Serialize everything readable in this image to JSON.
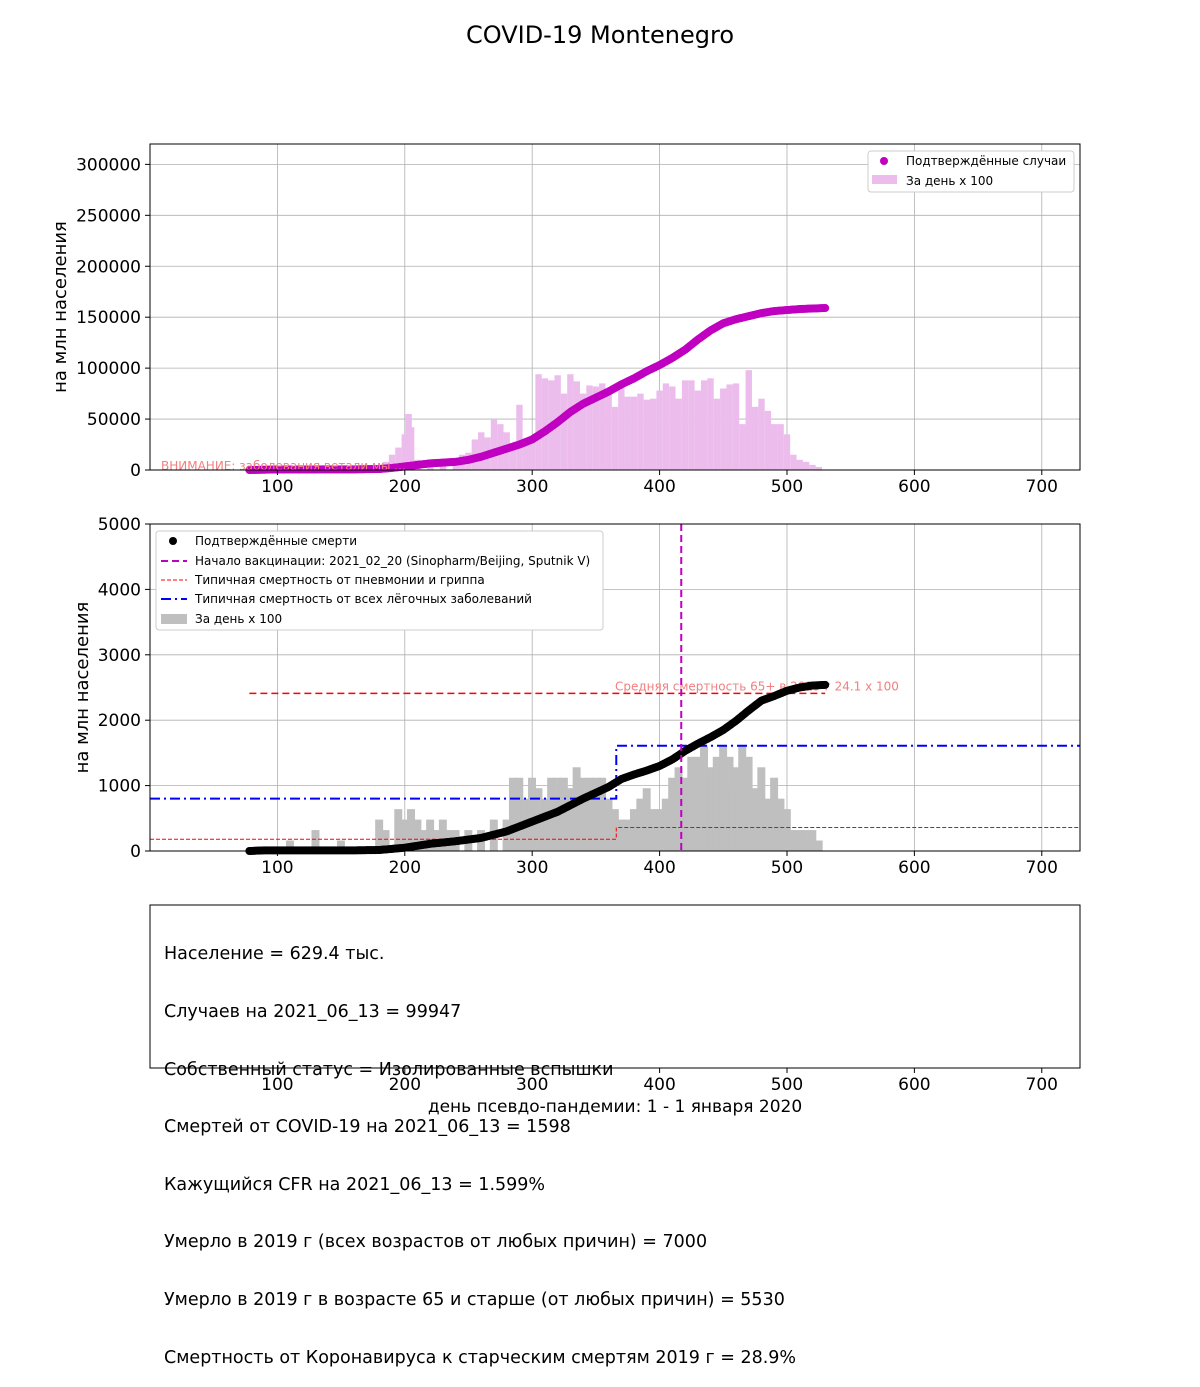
{
  "figure": {
    "title": "COVID-19 Montenegro"
  },
  "colors": {
    "cases": "#c000c0",
    "cases_bars": "#ebbcec",
    "deaths": "#000000",
    "death_bars": "#bfbfbf",
    "vaccination": "#c000c0",
    "flu": "#ff0000",
    "lung": "#0000ff",
    "note": "#f08080",
    "grid": "#b0b0b0"
  },
  "chart_data": [
    {
      "type": "scatter",
      "ylabel": "на млн населения",
      "xlim": [
        0,
        730
      ],
      "ylim": [
        0,
        320000
      ],
      "xticks": [
        100,
        200,
        300,
        400,
        500,
        600,
        700
      ],
      "yticks": [
        0,
        50000,
        100000,
        150000,
        200000,
        250000,
        300000
      ],
      "grid": true,
      "legend_position": "top-right",
      "legend": [
        "Подтверждённые случаи",
        "За день х 100"
      ],
      "annotation": "ВНИМАНИЕ: заболевания ветали мы ...",
      "series": [
        {
          "name": "Подтверждённые случаи",
          "kind": "points",
          "x": [
            78,
            100,
            130,
            160,
            180,
            190,
            200,
            210,
            220,
            240,
            250,
            260,
            270,
            280,
            290,
            300,
            310,
            320,
            330,
            340,
            350,
            360,
            370,
            380,
            390,
            400,
            410,
            420,
            430,
            440,
            450,
            460,
            470,
            480,
            490,
            500,
            510,
            520,
            530
          ],
          "y": [
            0,
            500,
            550,
            600,
            1000,
            2000,
            3500,
            5000,
            6500,
            8000,
            10000,
            13000,
            17000,
            21000,
            25000,
            30000,
            38000,
            47000,
            57000,
            65000,
            71000,
            77000,
            84000,
            90000,
            97000,
            103000,
            110000,
            118000,
            128000,
            137000,
            144000,
            148000,
            151000,
            154000,
            156000,
            157000,
            158000,
            158500,
            159000
          ]
        },
        {
          "name": "За день х 100",
          "kind": "bars",
          "x": [
            185,
            190,
            195,
            200,
            203,
            205,
            210,
            220,
            230,
            240,
            245,
            250,
            255,
            260,
            265,
            270,
            275,
            280,
            285,
            290,
            295,
            300,
            305,
            310,
            315,
            320,
            325,
            330,
            335,
            340,
            345,
            350,
            355,
            360,
            365,
            370,
            375,
            380,
            385,
            390,
            395,
            400,
            405,
            410,
            415,
            420,
            425,
            430,
            435,
            440,
            445,
            450,
            455,
            460,
            465,
            470,
            475,
            480,
            485,
            490,
            495,
            500,
            505,
            510,
            515,
            520,
            525
          ],
          "y": [
            8000,
            15000,
            22000,
            35000,
            55000,
            42000,
            10000,
            8000,
            10000,
            10000,
            15000,
            17000,
            30000,
            37000,
            32000,
            50000,
            45000,
            37000,
            25000,
            64000,
            27000,
            30000,
            94000,
            90000,
            88000,
            93000,
            75000,
            94000,
            87000,
            75000,
            83000,
            82000,
            85000,
            75000,
            62000,
            82000,
            72000,
            72000,
            75000,
            69000,
            70000,
            78000,
            85000,
            82000,
            70000,
            88000,
            88000,
            78000,
            88000,
            90000,
            70000,
            80000,
            84000,
            85000,
            45000,
            98000,
            62000,
            70000,
            58000,
            45000,
            45000,
            35000,
            15000,
            10000,
            8000,
            5000,
            3000
          ]
        }
      ]
    },
    {
      "type": "scatter",
      "ylabel": "на млн населения",
      "xlim": [
        0,
        730
      ],
      "ylim": [
        0,
        5000
      ],
      "xticks": [
        100,
        200,
        300,
        400,
        500,
        600,
        700
      ],
      "yticks": [
        0,
        1000,
        2000,
        3000,
        4000,
        5000
      ],
      "grid": true,
      "legend_position": "top-left",
      "legend": [
        "Подтверждённые смерти",
        "Начало вакцинации: 2021_02_20 (Sinopharm/Beijing, Sputnik V)",
        "Типичная смертность от пневмонии и гриппа",
        "Типичная смертность от всех лёгочных заболеваний",
        "За день х 100"
      ],
      "annotation": "Средняя смертность 65+ в 2019 г 24.1 х 100",
      "series": [
        {
          "name": "Подтверждённые смерти",
          "kind": "points",
          "x": [
            78,
            90,
            100,
            130,
            160,
            180,
            200,
            210,
            220,
            240,
            260,
            280,
            300,
            320,
            340,
            360,
            370,
            380,
            390,
            400,
            410,
            420,
            430,
            440,
            450,
            460,
            470,
            480,
            490,
            500,
            510,
            520,
            530
          ],
          "y": [
            0,
            10,
            10,
            10,
            10,
            15,
            50,
            80,
            110,
            150,
            200,
            300,
            450,
            600,
            800,
            980,
            1100,
            1170,
            1230,
            1300,
            1400,
            1530,
            1640,
            1740,
            1850,
            1990,
            2150,
            2300,
            2370,
            2450,
            2500,
            2530,
            2540
          ]
        },
        {
          "name": "Начало вакцинации: 2021_02_20 (Sinopharm/Beijing, Sputnik V)",
          "kind": "vline",
          "x": 417
        },
        {
          "name": "Типичная смертность от пневмонии и гриппа",
          "kind": "step",
          "x": [
            0,
            366,
            366,
            730
          ],
          "y": [
            180,
            180,
            360,
            360
          ]
        },
        {
          "name": "Типичная смертность от всех лёгочных заболеваний",
          "kind": "step",
          "x": [
            0,
            366,
            366,
            730
          ],
          "y": [
            800,
            800,
            1610,
            1610
          ]
        },
        {
          "name": "Средняя смертность 65+ в 2019 г 24.1 х 100",
          "kind": "hline",
          "x": [
            78,
            530
          ],
          "y": 2410
        },
        {
          "name": "За день х 100",
          "kind": "bars",
          "x": [
            110,
            130,
            150,
            180,
            185,
            195,
            200,
            205,
            210,
            215,
            220,
            225,
            230,
            235,
            240,
            250,
            260,
            270,
            280,
            285,
            290,
            295,
            300,
            305,
            310,
            315,
            320,
            325,
            330,
            335,
            340,
            345,
            350,
            355,
            360,
            365,
            370,
            375,
            380,
            385,
            390,
            395,
            400,
            405,
            410,
            415,
            420,
            425,
            430,
            435,
            440,
            445,
            450,
            455,
            460,
            465,
            470,
            475,
            480,
            485,
            490,
            495,
            500,
            505,
            510,
            515,
            520,
            525
          ],
          "y": [
            160,
            320,
            160,
            480,
            320,
            640,
            480,
            640,
            480,
            320,
            480,
            320,
            480,
            320,
            320,
            320,
            320,
            480,
            480,
            1120,
            1120,
            800,
            1120,
            960,
            800,
            1120,
            1120,
            1120,
            960,
            1280,
            1120,
            1120,
            1120,
            1120,
            800,
            640,
            480,
            480,
            640,
            800,
            960,
            640,
            640,
            800,
            1120,
            1280,
            1120,
            1440,
            1440,
            1600,
            1280,
            1440,
            1600,
            1440,
            1280,
            1600,
            1440,
            960,
            1280,
            800,
            1120,
            800,
            640,
            320,
            320,
            320,
            320,
            160
          ]
        }
      ]
    }
  ],
  "stats": {
    "population": "Население = 629.4 тыс.",
    "cases": "Случаев на 2021_06_13 = 99947",
    "status": "Собственный статус = Изолированные вспышки",
    "deaths": "Смертей от COVID-19 на 2021_06_13 = 1598",
    "cfr": "Кажущийся CFR на 2021_06_13 = 1.599%",
    "died_2019": "Умерло в 2019 г (всех возрастов от любых причин) = 7000",
    "died_2019_65": "Умерло в 2019 г в возрасте 65 и старше (от любых причин) = 5530",
    "ratio": "Смертность от Коронавируса к старческим смертям 2019 г = 28.9%"
  },
  "bottom_axis": {
    "xticks": [
      100,
      200,
      300,
      400,
      500,
      600,
      700
    ],
    "xlabel": "день псевдо-пандемии: 1 - 1 января 2020"
  }
}
